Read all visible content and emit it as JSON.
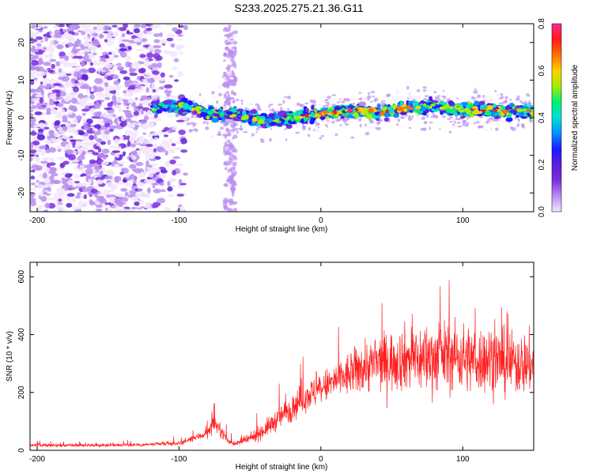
{
  "page": {
    "title": "S233.2025.275.21.36.G11"
  },
  "chart_data": [
    {
      "type": "heatmap",
      "title": "S233.2025.275.21.36.G11",
      "xlabel": "Height of straight line (km)",
      "ylabel": "Frequency (Hz)",
      "xlim": [
        -205,
        150
      ],
      "ylim": [
        -25,
        25
      ],
      "xticks": [
        -200,
        -100,
        0,
        100
      ],
      "yticks": [
        -20,
        -10,
        0,
        10,
        20
      ],
      "colorbar": {
        "label": "Normalized spectral amplitude",
        "range": [
          0.0,
          0.8
        ],
        "ticks": [
          "0.0",
          "0.2",
          "0.4",
          "0.6",
          "0.8"
        ],
        "colors": [
          "#f2e6fb",
          "#b98ef0",
          "#7a2fe0",
          "#5a1ed8",
          "#1a1aff",
          "#0090ff",
          "#00e0d8",
          "#00f070",
          "#a0f000",
          "#ffd000",
          "#ff7000",
          "#ff1a1a",
          "#ff2a8a"
        ]
      },
      "ridge": {
        "x_start": -118,
        "x_end": 150,
        "center_hz": [
          [
            -118,
            3
          ],
          [
            -100,
            3
          ],
          [
            -90,
            2.5
          ],
          [
            -80,
            1
          ],
          [
            -60,
            1
          ],
          [
            -40,
            -1
          ],
          [
            -20,
            0
          ],
          [
            0,
            1
          ],
          [
            20,
            2
          ],
          [
            40,
            1.5
          ],
          [
            60,
            2.5
          ],
          [
            80,
            3
          ],
          [
            100,
            2
          ],
          [
            120,
            2
          ],
          [
            150,
            1.5
          ]
        ],
        "peak_amplitude": 0.75
      },
      "noise_region_x": [
        -205,
        -95
      ],
      "secondary_stripe_x": [
        -68,
        -60
      ]
    },
    {
      "type": "line",
      "xlabel": "Height of straight line (km)",
      "ylabel": "SNR (10 * v/v)",
      "xlim": [
        -205,
        150
      ],
      "ylim": [
        0,
        650
      ],
      "xticks": [
        -200,
        -100,
        0,
        100
      ],
      "yticks": [
        0,
        200,
        400,
        600
      ],
      "color": "#ff2020",
      "series": [
        {
          "name": "SNR",
          "envelope": {
            "x": [
              -205,
              -180,
              -150,
              -120,
              -100,
              -90,
              -80,
              -75,
              -70,
              -65,
              -60,
              -50,
              -40,
              -30,
              -20,
              -10,
              0,
              10,
              20,
              30,
              40,
              50,
              60,
              70,
              80,
              90,
              100,
              110,
              120,
              130,
              150
            ],
            "mean": [
              18,
              17,
              18,
              20,
              24,
              40,
              60,
              95,
              65,
              30,
              22,
              40,
              70,
              110,
              150,
              190,
              210,
              240,
              260,
              290,
              300,
              310,
              320,
              315,
              320,
              330,
              320,
              310,
              320,
              300,
              300
            ],
            "amp": [
              8,
              8,
              8,
              9,
              10,
              15,
              25,
              40,
              30,
              12,
              10,
              25,
              40,
              55,
              70,
              75,
              80,
              90,
              110,
              130,
              140,
              150,
              160,
              170,
              170,
              170,
              170,
              165,
              170,
              160,
              150
            ],
            "max": [
              35,
              32,
              35,
              40,
              50,
              70,
              110,
              170,
              140,
              70,
              60,
              110,
              160,
              240,
              320,
              330,
              360,
              420,
              500,
              520,
              560,
              600,
              610,
              640,
              580,
              610,
              620,
              600,
              590,
              520,
              500
            ]
          }
        }
      ]
    }
  ]
}
